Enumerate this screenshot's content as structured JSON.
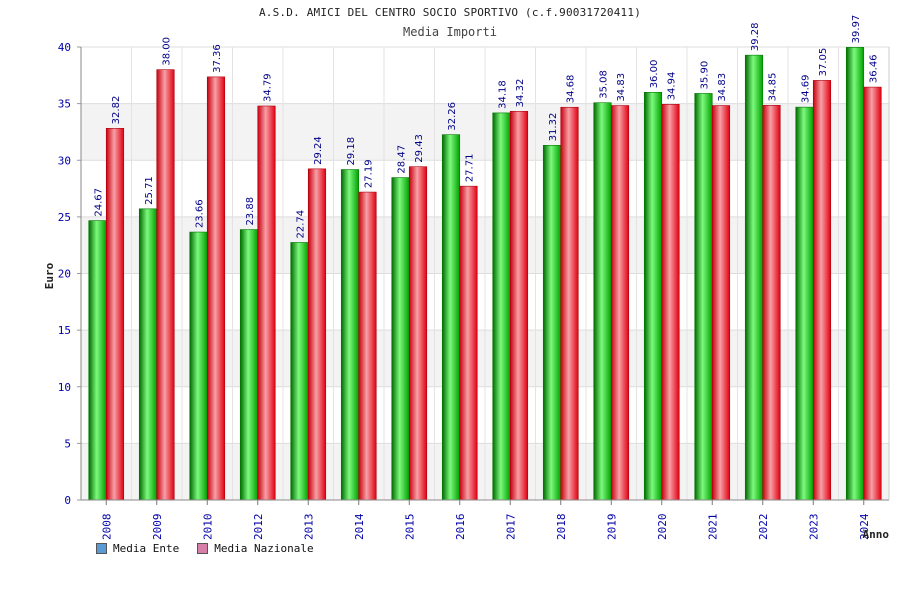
{
  "title": "A.S.D. AMICI DEL CENTRO SOCIO SPORTIVO (c.f.90031720411)",
  "subtitle": "Media Importi",
  "chart_data": {
    "type": "bar",
    "title": "Media Importi",
    "xlabel": "Anno",
    "ylabel": "Euro",
    "ylim": [
      0,
      40
    ],
    "yticks": [
      0,
      5,
      10,
      15,
      20,
      25,
      30,
      35,
      40
    ],
    "grid": true,
    "legend_position": "bottom-left",
    "categories": [
      "2008",
      "2009",
      "2010",
      "2012",
      "2013",
      "2014",
      "2015",
      "2016",
      "2017",
      "2018",
      "2019",
      "2020",
      "2021",
      "2022",
      "2023",
      "2024"
    ],
    "series": [
      {
        "name": "Media Ente",
        "color": "#00b000",
        "legend_color": "#5b9bd5",
        "values": [
          24.67,
          25.71,
          23.66,
          23.88,
          22.74,
          29.18,
          28.47,
          32.26,
          34.18,
          31.32,
          35.08,
          36.0,
          35.9,
          39.28,
          34.69,
          39.97
        ],
        "labels": [
          "24.67",
          "25.71",
          "23.66",
          "23.88",
          "22.74",
          "29.18",
          "28.47",
          "32.26",
          "34.18",
          "31.32",
          "35.08",
          "36.00",
          "35.90",
          "39.28",
          "34.69",
          "39.97"
        ]
      },
      {
        "name": "Media Nazionale",
        "color": "#e8101e",
        "legend_color": "#d77fa8",
        "values": [
          32.82,
          38.0,
          37.36,
          34.79,
          29.24,
          27.19,
          29.43,
          27.71,
          34.32,
          34.68,
          34.83,
          34.94,
          34.83,
          34.85,
          37.05,
          36.46
        ],
        "labels": [
          "32.82",
          "38.00",
          "37.36",
          "34.79",
          "29.24",
          "27.19",
          "29.43",
          "27.71",
          "34.32",
          "34.68",
          "34.83",
          "34.94",
          "34.83",
          "34.85",
          "37.05",
          "36.46"
        ]
      }
    ]
  }
}
